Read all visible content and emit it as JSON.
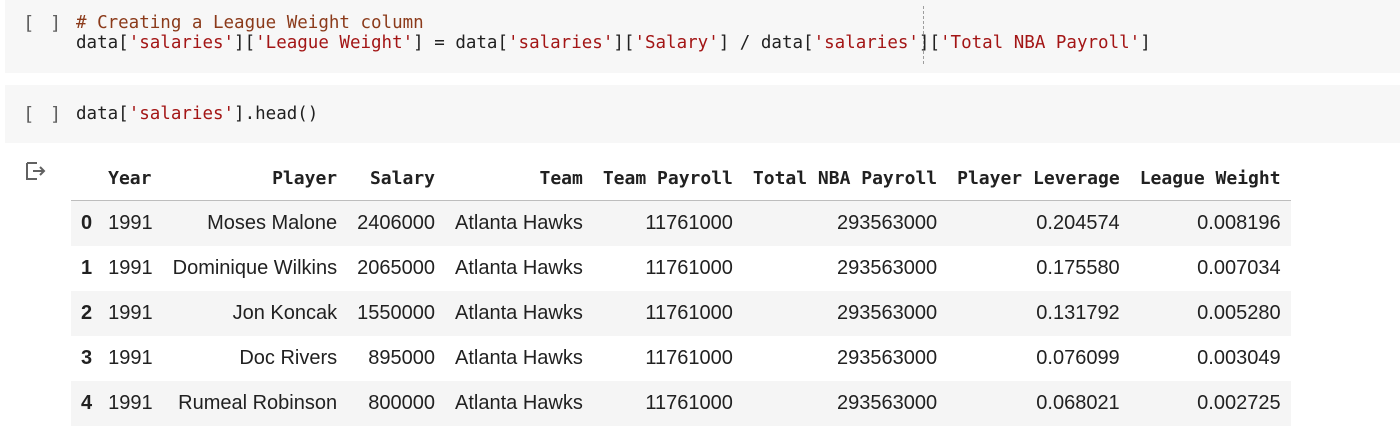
{
  "cells": [
    {
      "run_label": "[ ]",
      "code_lines": [
        [
          {
            "t": "# Creating a League Weight column",
            "c": "comment"
          }
        ],
        [
          {
            "t": "data[",
            "c": ""
          },
          {
            "t": "'salaries'",
            "c": "str"
          },
          {
            "t": "][",
            "c": ""
          },
          {
            "t": "'League Weight'",
            "c": "str"
          },
          {
            "t": "] = data[",
            "c": ""
          },
          {
            "t": "'salaries'",
            "c": "str"
          },
          {
            "t": "][",
            "c": ""
          },
          {
            "t": "'Salary'",
            "c": "str"
          },
          {
            "t": "] / data[",
            "c": ""
          },
          {
            "t": "'salaries'",
            "c": "str"
          },
          {
            "t": "][",
            "c": ""
          },
          {
            "t": "'Total NBA Payroll'",
            "c": "str"
          },
          {
            "t": "]",
            "c": ""
          }
        ]
      ]
    },
    {
      "run_label": "[ ]",
      "code_lines": [
        [
          {
            "t": "data[",
            "c": ""
          },
          {
            "t": "'salaries'",
            "c": "str"
          },
          {
            "t": "].head()",
            "c": ""
          }
        ]
      ]
    }
  ],
  "output": {
    "icon": "output-redirect-icon",
    "table": {
      "columns": [
        "",
        "Year",
        "Player",
        "Salary",
        "Team",
        "Team Payroll",
        "Total NBA Payroll",
        "Player Leverage",
        "League Weight"
      ],
      "rows": [
        [
          "0",
          "1991",
          "Moses Malone",
          "2406000",
          "Atlanta Hawks",
          "11761000",
          "293563000",
          "0.204574",
          "0.008196"
        ],
        [
          "1",
          "1991",
          "Dominique Wilkins",
          "2065000",
          "Atlanta Hawks",
          "11761000",
          "293563000",
          "0.175580",
          "0.007034"
        ],
        [
          "2",
          "1991",
          "Jon Koncak",
          "1550000",
          "Atlanta Hawks",
          "11761000",
          "293563000",
          "0.131792",
          "0.005280"
        ],
        [
          "3",
          "1991",
          "Doc Rivers",
          "895000",
          "Atlanta Hawks",
          "11761000",
          "293563000",
          "0.076099",
          "0.003049"
        ],
        [
          "4",
          "1991",
          "Rumeal Robinson",
          "800000",
          "Atlanta Hawks",
          "11761000",
          "293563000",
          "0.068021",
          "0.002725"
        ]
      ]
    }
  }
}
